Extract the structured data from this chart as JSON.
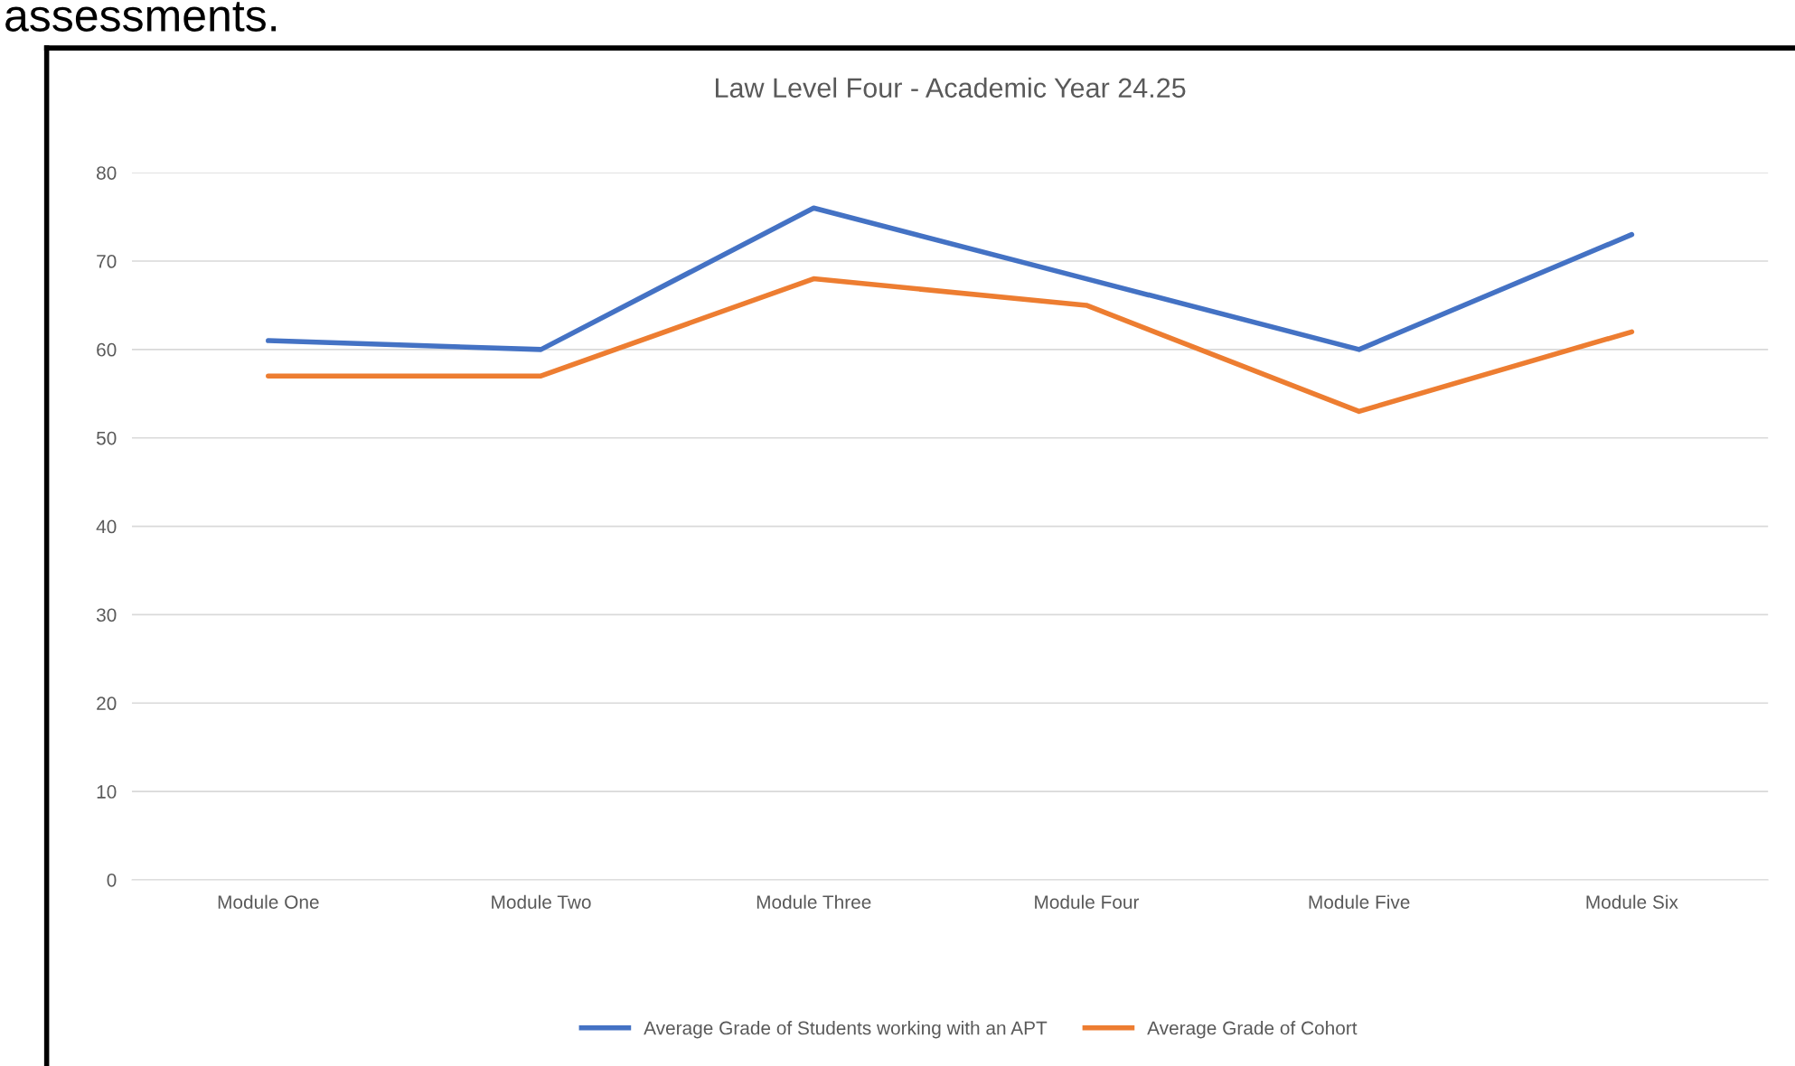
{
  "chart_data": {
    "type": "line",
    "title": "Law Level Four - Academic Year 24.25",
    "annotations": [
      "assessments."
    ],
    "categories": [
      "Module One",
      "Module Two",
      "Module Three",
      "Module Four",
      "Module Five",
      "Module Six"
    ],
    "series": [
      {
        "name": "Average Grade of Students working with an APT",
        "color": "#4472c4",
        "values": [
          61,
          60,
          76,
          68,
          60,
          73
        ]
      },
      {
        "name": "Average Grade of Cohort",
        "color": "#ed7d31",
        "values": [
          57,
          57,
          68,
          65,
          53,
          62
        ]
      }
    ],
    "ylim": [
      0,
      80
    ],
    "yticks": [
      0,
      10,
      20,
      30,
      40,
      50,
      60,
      70,
      80
    ],
    "grid": "y",
    "legend": "bottom",
    "marker": "none",
    "line_style": "solid"
  }
}
